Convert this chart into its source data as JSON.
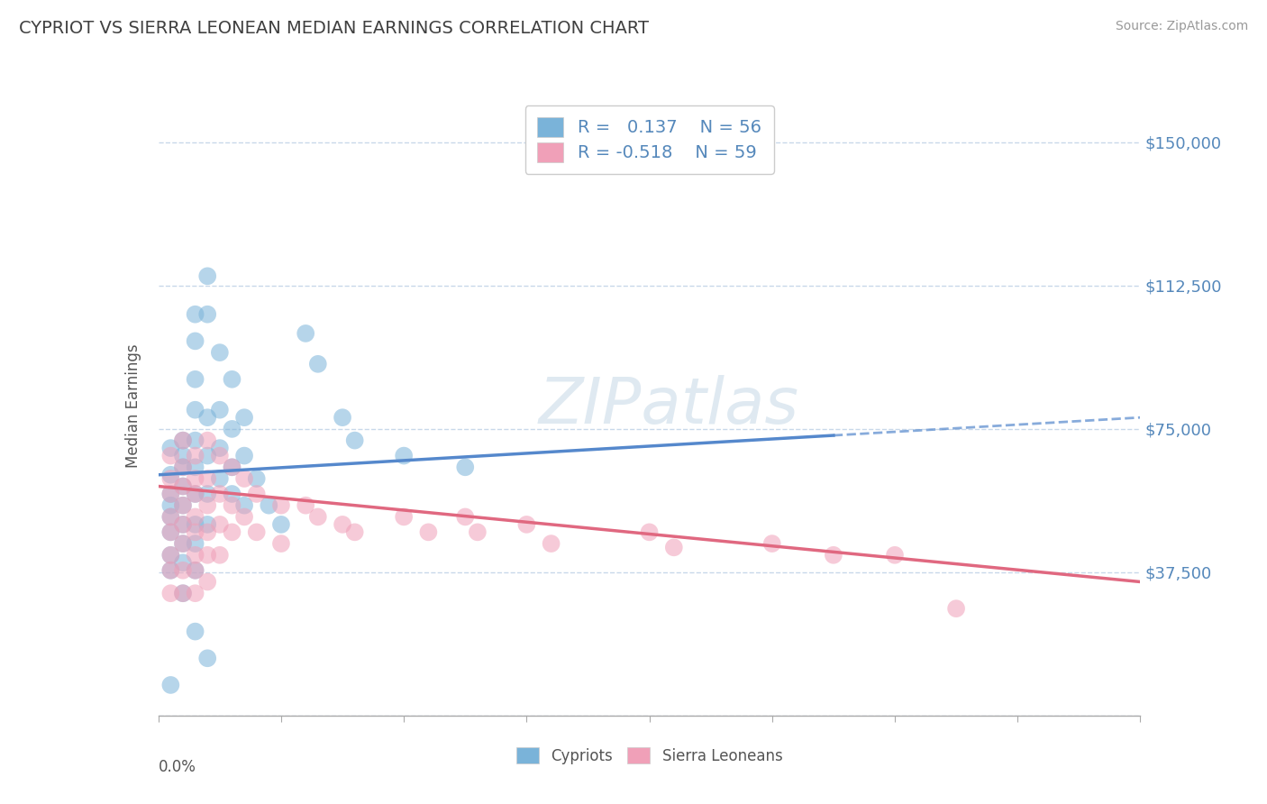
{
  "title": "CYPRIOT VS SIERRA LEONEAN MEDIAN EARNINGS CORRELATION CHART",
  "source": "Source: ZipAtlas.com",
  "ylabel": "Median Earnings",
  "xlim": [
    0.0,
    0.08
  ],
  "ylim": [
    0,
    162000
  ],
  "yticks": [
    0,
    37500,
    75000,
    112500,
    150000
  ],
  "ytick_labels": [
    "",
    "$37,500",
    "$75,000",
    "$112,500",
    "$150,000"
  ],
  "watermark": "ZIPatlas",
  "legend_R1": "R = ",
  "legend_V1": " 0.137",
  "legend_N1": "   N = ",
  "legend_NV1": "56",
  "legend_R2": "R = ",
  "legend_V2": "-0.518",
  "legend_N2": "   N = ",
  "legend_NV2": "59",
  "cypriot_color": "#7ab3d9",
  "sierra_color": "#f0a0b8",
  "trend_blue": "#5588cc",
  "trend_pink": "#e06880",
  "grid_color": "#c8d8ea",
  "background_color": "#ffffff",
  "title_color": "#404040",
  "axis_label_color": "#5588bb",
  "cypriot_points": [
    [
      0.001,
      63000
    ],
    [
      0.001,
      70000
    ],
    [
      0.001,
      58000
    ],
    [
      0.001,
      55000
    ],
    [
      0.001,
      52000
    ],
    [
      0.001,
      48000
    ],
    [
      0.001,
      42000
    ],
    [
      0.001,
      38000
    ],
    [
      0.002,
      72000
    ],
    [
      0.002,
      68000
    ],
    [
      0.002,
      65000
    ],
    [
      0.002,
      60000
    ],
    [
      0.002,
      55000
    ],
    [
      0.002,
      50000
    ],
    [
      0.002,
      45000
    ],
    [
      0.002,
      40000
    ],
    [
      0.003,
      105000
    ],
    [
      0.003,
      98000
    ],
    [
      0.003,
      88000
    ],
    [
      0.003,
      80000
    ],
    [
      0.003,
      72000
    ],
    [
      0.003,
      65000
    ],
    [
      0.003,
      58000
    ],
    [
      0.003,
      50000
    ],
    [
      0.003,
      45000
    ],
    [
      0.003,
      38000
    ],
    [
      0.004,
      115000
    ],
    [
      0.004,
      105000
    ],
    [
      0.004,
      78000
    ],
    [
      0.004,
      68000
    ],
    [
      0.004,
      58000
    ],
    [
      0.004,
      50000
    ],
    [
      0.005,
      95000
    ],
    [
      0.005,
      80000
    ],
    [
      0.005,
      70000
    ],
    [
      0.005,
      62000
    ],
    [
      0.006,
      88000
    ],
    [
      0.006,
      75000
    ],
    [
      0.006,
      65000
    ],
    [
      0.007,
      78000
    ],
    [
      0.007,
      68000
    ],
    [
      0.008,
      62000
    ],
    [
      0.009,
      55000
    ],
    [
      0.01,
      50000
    ],
    [
      0.012,
      100000
    ],
    [
      0.013,
      92000
    ],
    [
      0.015,
      78000
    ],
    [
      0.016,
      72000
    ],
    [
      0.02,
      68000
    ],
    [
      0.025,
      65000
    ],
    [
      0.003,
      22000
    ],
    [
      0.004,
      15000
    ],
    [
      0.002,
      32000
    ],
    [
      0.001,
      8000
    ],
    [
      0.006,
      58000
    ],
    [
      0.007,
      55000
    ]
  ],
  "sierra_points": [
    [
      0.001,
      68000
    ],
    [
      0.001,
      62000
    ],
    [
      0.001,
      58000
    ],
    [
      0.001,
      52000
    ],
    [
      0.001,
      48000
    ],
    [
      0.001,
      42000
    ],
    [
      0.001,
      38000
    ],
    [
      0.001,
      32000
    ],
    [
      0.002,
      72000
    ],
    [
      0.002,
      65000
    ],
    [
      0.002,
      60000
    ],
    [
      0.002,
      55000
    ],
    [
      0.002,
      50000
    ],
    [
      0.002,
      45000
    ],
    [
      0.002,
      38000
    ],
    [
      0.002,
      32000
    ],
    [
      0.003,
      68000
    ],
    [
      0.003,
      62000
    ],
    [
      0.003,
      58000
    ],
    [
      0.003,
      52000
    ],
    [
      0.003,
      48000
    ],
    [
      0.003,
      42000
    ],
    [
      0.003,
      38000
    ],
    [
      0.003,
      32000
    ],
    [
      0.004,
      72000
    ],
    [
      0.004,
      62000
    ],
    [
      0.004,
      55000
    ],
    [
      0.004,
      48000
    ],
    [
      0.004,
      42000
    ],
    [
      0.004,
      35000
    ],
    [
      0.005,
      68000
    ],
    [
      0.005,
      58000
    ],
    [
      0.005,
      50000
    ],
    [
      0.005,
      42000
    ],
    [
      0.006,
      65000
    ],
    [
      0.006,
      55000
    ],
    [
      0.006,
      48000
    ],
    [
      0.007,
      62000
    ],
    [
      0.007,
      52000
    ],
    [
      0.008,
      58000
    ],
    [
      0.008,
      48000
    ],
    [
      0.01,
      55000
    ],
    [
      0.01,
      45000
    ],
    [
      0.012,
      55000
    ],
    [
      0.013,
      52000
    ],
    [
      0.015,
      50000
    ],
    [
      0.016,
      48000
    ],
    [
      0.02,
      52000
    ],
    [
      0.022,
      48000
    ],
    [
      0.025,
      52000
    ],
    [
      0.026,
      48000
    ],
    [
      0.03,
      50000
    ],
    [
      0.032,
      45000
    ],
    [
      0.04,
      48000
    ],
    [
      0.042,
      44000
    ],
    [
      0.05,
      45000
    ],
    [
      0.055,
      42000
    ],
    [
      0.06,
      42000
    ],
    [
      0.065,
      28000
    ]
  ]
}
